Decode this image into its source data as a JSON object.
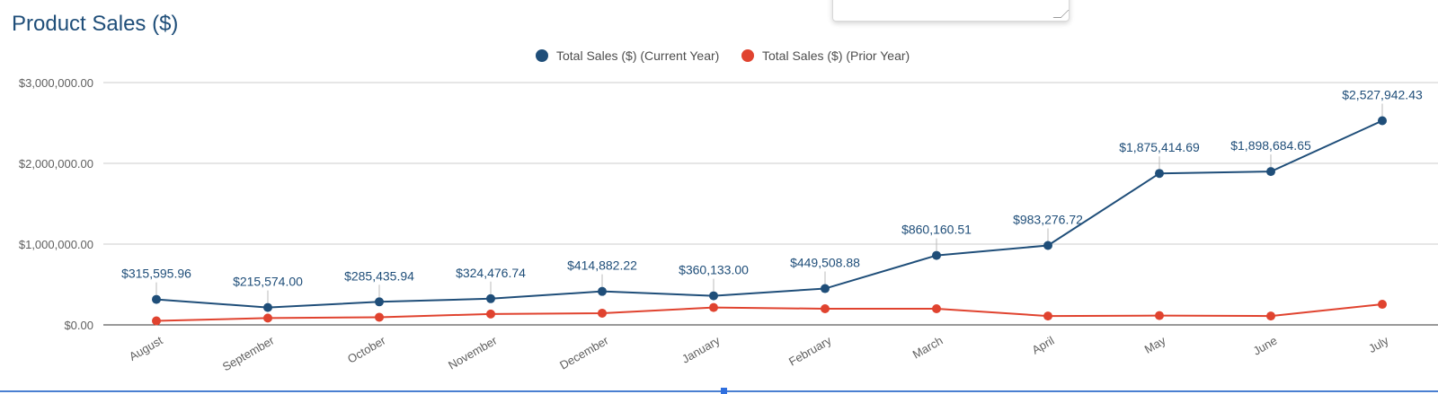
{
  "title": "Product Sales ($)",
  "chart_data": {
    "type": "line",
    "title": "Product Sales ($)",
    "categories": [
      "August",
      "September",
      "October",
      "November",
      "December",
      "January",
      "February",
      "March",
      "April",
      "May",
      "June",
      "July"
    ],
    "series": [
      {
        "name": "Total Sales ($) (Current Year)",
        "color": "#1f4e79",
        "values": [
          315595.96,
          215574.0,
          285435.94,
          324476.74,
          414882.22,
          360133.0,
          449508.88,
          860160.51,
          983276.72,
          1875414.69,
          1898684.65,
          2527942.43
        ],
        "labels": [
          "$315,595.96",
          "$215,574.00",
          "$285,435.94",
          "$324,476.74",
          "$414,882.22",
          "$360,133.00",
          "$449,508.88",
          "$860,160.51",
          "$983,276.72",
          "$1,875,414.69",
          "$1,898,684.65",
          "$2,527,942.43"
        ]
      },
      {
        "name": "Total Sales ($) (Prior Year)",
        "color": "#e0432f",
        "values": [
          50000,
          85000,
          95000,
          135000,
          145000,
          215000,
          200000,
          200000,
          110000,
          115000,
          110000,
          255000
        ]
      }
    ],
    "y_ticks": [
      "$0.00",
      "$1,000,000.00",
      "$2,000,000.00",
      "$3,000,000.00"
    ],
    "ylim": [
      0,
      3000000
    ],
    "grid": true,
    "legend_position": "top-center"
  }
}
